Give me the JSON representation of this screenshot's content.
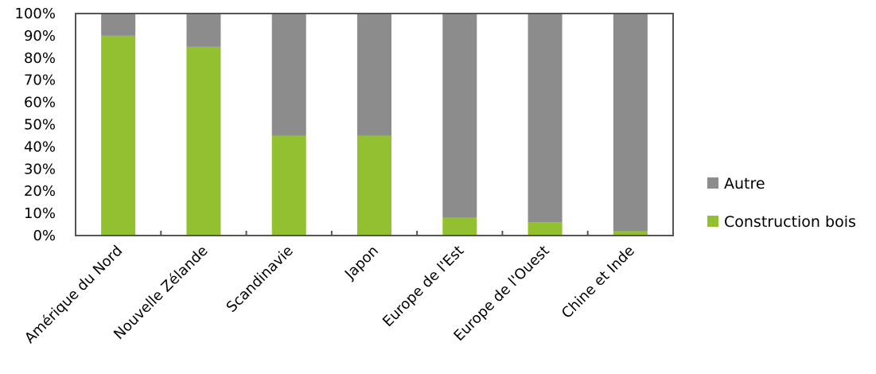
{
  "chart_data": {
    "type": "bar",
    "stacked": true,
    "categories": [
      "Amérique du Nord",
      "Nouvelle Zélande",
      "Scandinavie",
      "Japon",
      "Europe de l'Est",
      "Europe de l'Ouest",
      "Chine et Inde"
    ],
    "series": [
      {
        "name": "Construction bois",
        "color": "#92c030",
        "values": [
          90,
          85,
          45,
          45,
          8,
          6,
          2
        ]
      },
      {
        "name": "Autre",
        "color": "#8c8c8c",
        "values": [
          10,
          15,
          55,
          55,
          92,
          94,
          98
        ]
      }
    ],
    "yticks": [
      "0%",
      "10%",
      "20%",
      "30%",
      "40%",
      "50%",
      "60%",
      "70%",
      "80%",
      "90%",
      "100%"
    ],
    "ylim": [
      0,
      100
    ],
    "grid": false,
    "legend": {
      "position": "right",
      "entries": [
        {
          "label": "Autre",
          "color": "#8c8c8c"
        },
        {
          "label": "Construction bois",
          "color": "#92c030"
        }
      ]
    }
  }
}
